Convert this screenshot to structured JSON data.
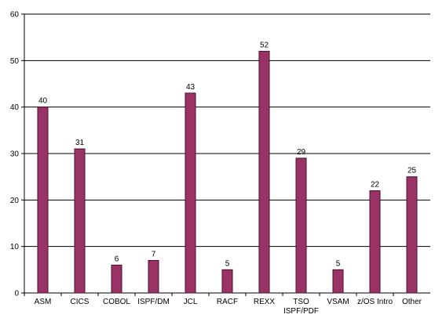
{
  "chart_data": {
    "type": "bar",
    "categories": [
      "ASM",
      "CICS",
      "COBOL",
      "ISPF/DM",
      "JCL",
      "RACF",
      "REXX",
      "TSO\nISPF/PDF",
      "VSAM",
      "z/OS Intro",
      "Other"
    ],
    "values": [
      40,
      31,
      6,
      7,
      43,
      5,
      52,
      29,
      5,
      22,
      25
    ],
    "color": "#993366",
    "ylim": [
      0,
      60
    ],
    "yticks": [
      0,
      10,
      20,
      30,
      40,
      50,
      60
    ],
    "grid": true,
    "data_labels": true
  }
}
